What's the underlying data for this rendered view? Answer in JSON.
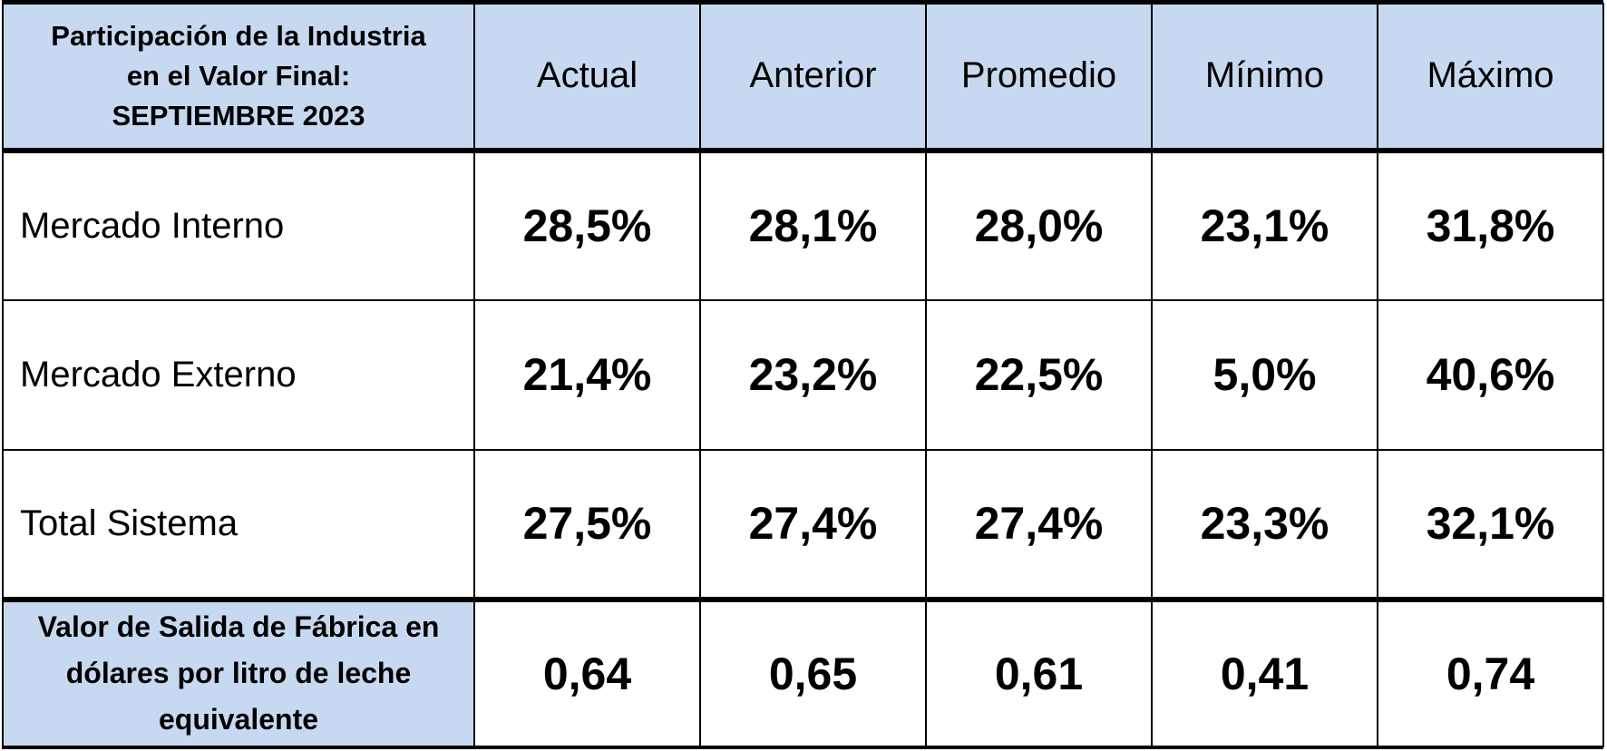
{
  "table": {
    "corner": {
      "line1": "Participación de la Industria",
      "line2": "en el Valor Final:",
      "line3": "SEPTIEMBRE 2023"
    },
    "columns": [
      "Actual",
      "Anterior",
      "Promedio",
      "Mínimo",
      "Máximo"
    ],
    "rows": [
      {
        "label": "Mercado Interno",
        "values": [
          "28,5%",
          "28,1%",
          "28,0%",
          "23,1%",
          "31,8%"
        ]
      },
      {
        "label": "Mercado Externo",
        "values": [
          "21,4%",
          "23,2%",
          "22,5%",
          "5,0%",
          "40,6%"
        ]
      },
      {
        "label": "Total Sistema",
        "values": [
          "27,5%",
          "27,4%",
          "27,4%",
          "23,3%",
          "32,1%"
        ]
      }
    ],
    "footer": {
      "label_line1": "Valor de Salida de Fábrica en",
      "label_line2": "dólares por litro de leche",
      "label_line3": "equivalente",
      "values": [
        "0,64",
        "0,65",
        "0,61",
        "0,41",
        "0,74"
      ]
    }
  },
  "colors": {
    "header_fill": "#c7d9f0",
    "border": "#000000",
    "text": "#000000",
    "background": "#ffffff"
  }
}
